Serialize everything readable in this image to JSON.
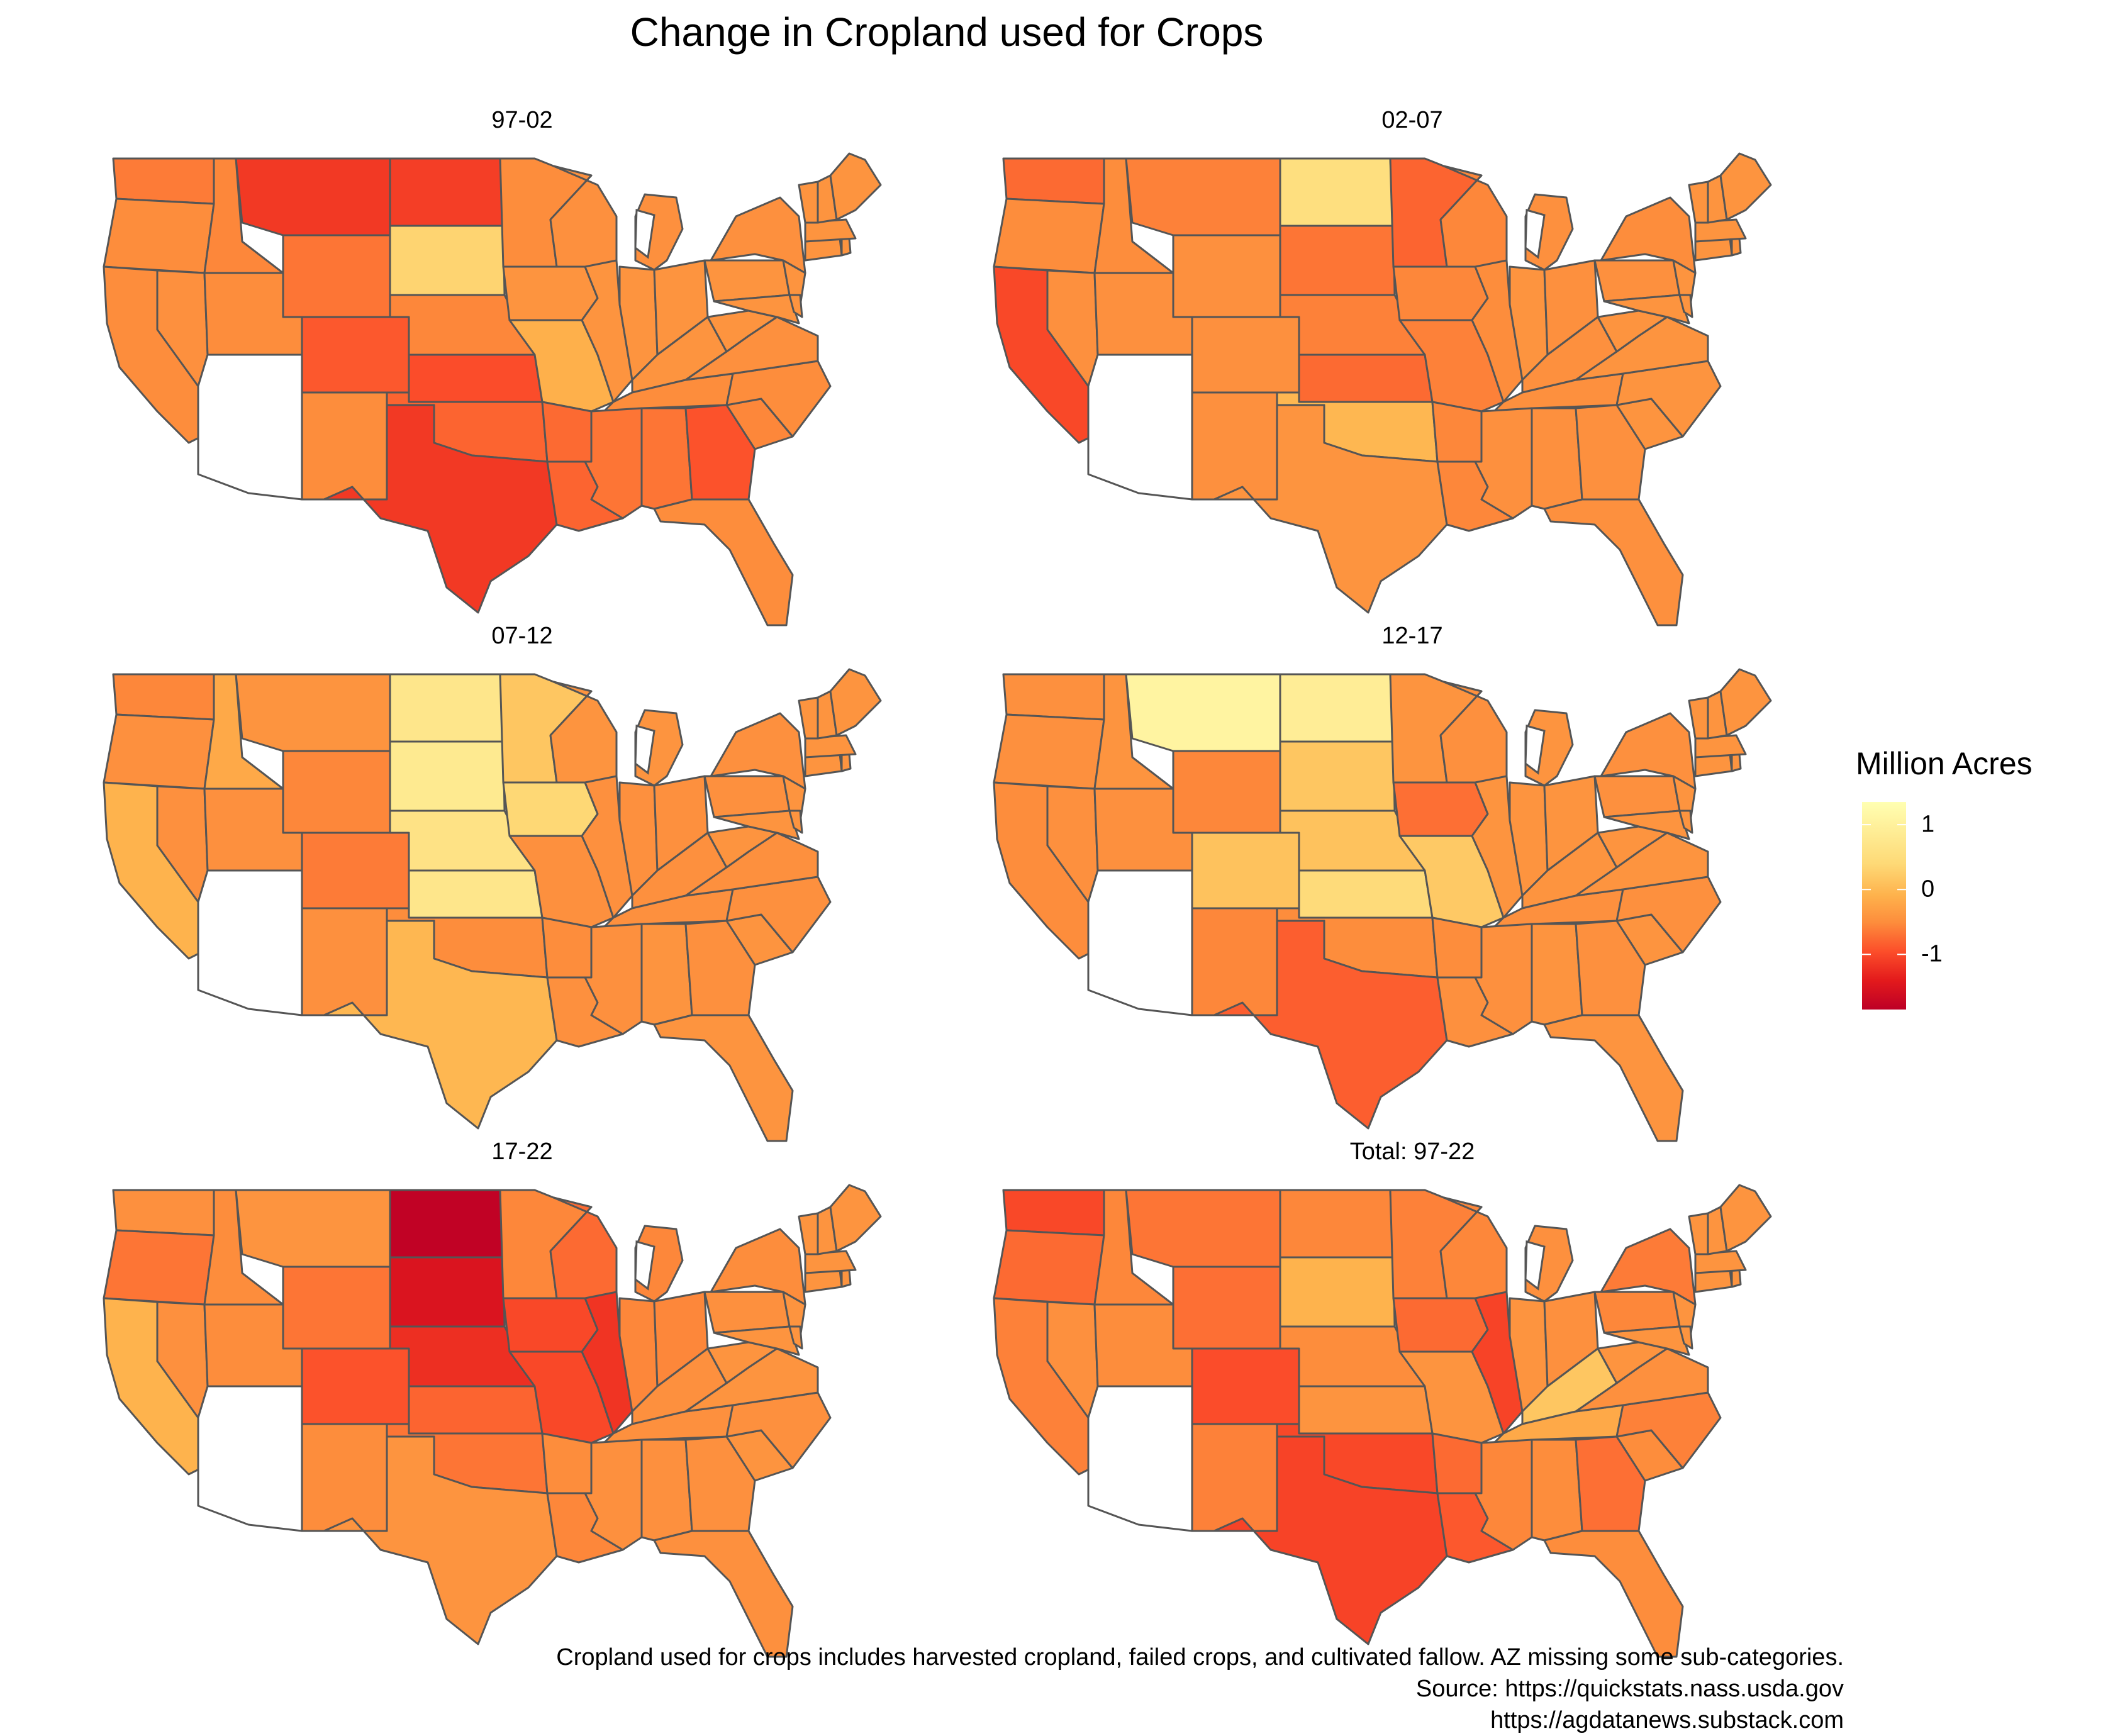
{
  "title": "Change in Cropland used for Crops",
  "colors": {
    "background": "#ffffff",
    "border": "#555555",
    "scale": [
      "#bd0026",
      "#e31a1c",
      "#fc4e2a",
      "#fd8d3c",
      "#feb24c",
      "#fed976",
      "#ffffb2"
    ]
  },
  "legend": {
    "title": "Million Acres",
    "min": -1.85,
    "max": 1.35,
    "ticks": [
      {
        "value": 1,
        "label": "1"
      },
      {
        "value": 0,
        "label": "0"
      },
      {
        "value": -1,
        "label": "-1"
      }
    ]
  },
  "panels": [
    {
      "title": "97-02",
      "values": {
        "WA": -0.4,
        "OR": -0.25,
        "CA": -0.25,
        "NV": -0.2,
        "ID": -0.3,
        "MT": -1.0,
        "WY": -0.45,
        "UT": -0.25,
        "CO": -0.7,
        "AZ": null,
        "NM": -0.25,
        "ND": -0.95,
        "SD": 0.75,
        "NE": -0.3,
        "KS": -0.8,
        "OK": -0.6,
        "TX": -1.0,
        "MN": -0.25,
        "IA": -0.15,
        "MO": 0.25,
        "AR": -0.55,
        "LA": -0.6,
        "WI": -0.2,
        "IL": -0.15,
        "MI": -0.2,
        "IN": -0.15,
        "OH": -0.15,
        "KY": -0.15,
        "TN": -0.25,
        "MS": -0.45,
        "AL": -0.45,
        "GA": -0.75,
        "FL": -0.25,
        "SC": -0.3,
        "NC": -0.25,
        "VA": -0.2,
        "WV": -0.15,
        "PA": -0.15,
        "NY": -0.2,
        "NJ": -0.15,
        "MD": -0.15,
        "DE": -0.15,
        "CT": -0.15,
        "RI": -0.15,
        "MA": -0.15,
        "VT": -0.15,
        "NH": -0.15,
        "ME": -0.15
      }
    },
    {
      "title": "02-07",
      "values": {
        "WA": -0.55,
        "OR": -0.25,
        "CA": -0.85,
        "NV": -0.2,
        "ID": -0.25,
        "MT": -0.35,
        "WY": -0.2,
        "UT": -0.2,
        "CO": -0.2,
        "AZ": null,
        "NM": -0.2,
        "ND": 0.9,
        "SD": -0.45,
        "NE": -0.35,
        "KS": -0.55,
        "OK": 0.35,
        "TX": -0.15,
        "MN": -0.6,
        "IA": -0.3,
        "MO": -0.35,
        "AR": -0.3,
        "LA": -0.3,
        "WI": -0.3,
        "IL": -0.25,
        "MI": -0.2,
        "IN": -0.15,
        "OH": -0.2,
        "KY": -0.2,
        "TN": -0.2,
        "MS": -0.2,
        "AL": -0.2,
        "GA": -0.2,
        "FL": -0.2,
        "SC": -0.15,
        "NC": -0.15,
        "VA": -0.15,
        "WV": -0.15,
        "PA": -0.2,
        "NY": -0.25,
        "NJ": -0.15,
        "MD": -0.15,
        "DE": -0.15,
        "CT": -0.15,
        "RI": -0.15,
        "MA": -0.15,
        "VT": -0.15,
        "NH": -0.15,
        "ME": -0.15
      }
    },
    {
      "title": "07-12",
      "values": {
        "WA": -0.3,
        "OR": -0.2,
        "CA": 0.3,
        "NV": -0.2,
        "ID": 0.15,
        "MT": -0.15,
        "WY": -0.3,
        "UT": -0.2,
        "CO": -0.4,
        "AZ": null,
        "NM": -0.2,
        "ND": 1.0,
        "SD": 1.05,
        "NE": 0.95,
        "KS": 1.0,
        "OK": -0.25,
        "TX": 0.35,
        "MN": 0.55,
        "IA": 0.8,
        "MO": -0.2,
        "AR": -0.25,
        "LA": -0.2,
        "WI": -0.15,
        "IL": -0.2,
        "MI": -0.15,
        "IN": -0.2,
        "OH": -0.2,
        "KY": -0.2,
        "TN": -0.2,
        "MS": -0.2,
        "AL": -0.15,
        "GA": -0.2,
        "FL": -0.15,
        "SC": -0.15,
        "NC": -0.2,
        "VA": -0.2,
        "WV": -0.15,
        "PA": -0.2,
        "NY": -0.2,
        "NJ": -0.15,
        "MD": -0.15,
        "DE": -0.15,
        "CT": -0.15,
        "RI": -0.15,
        "MA": -0.15,
        "VT": -0.15,
        "NH": -0.15,
        "ME": -0.15
      }
    },
    {
      "title": "12-17",
      "values": {
        "WA": -0.2,
        "OR": -0.2,
        "CA": -0.25,
        "NV": -0.2,
        "ID": -0.15,
        "MT": 1.2,
        "WY": -0.3,
        "UT": -0.2,
        "CO": 0.5,
        "AZ": null,
        "NM": -0.3,
        "ND": 1.1,
        "SD": 0.55,
        "NE": 0.5,
        "KS": 0.85,
        "OK": -0.25,
        "TX": -0.65,
        "MN": -0.15,
        "IA": -0.5,
        "MO": 0.6,
        "AR": -0.25,
        "LA": -0.2,
        "WI": -0.2,
        "IL": -0.15,
        "MI": -0.15,
        "IN": -0.15,
        "OH": -0.15,
        "KY": -0.15,
        "TN": -0.2,
        "MS": -0.2,
        "AL": -0.15,
        "GA": -0.2,
        "FL": -0.15,
        "SC": -0.15,
        "NC": -0.2,
        "VA": -0.15,
        "WV": -0.15,
        "PA": -0.2,
        "NY": -0.2,
        "NJ": -0.15,
        "MD": -0.15,
        "DE": -0.15,
        "CT": -0.15,
        "RI": -0.15,
        "MA": -0.15,
        "VT": -0.15,
        "NH": -0.15,
        "ME": -0.15
      }
    },
    {
      "title": "17-22",
      "values": {
        "WA": -0.2,
        "OR": -0.45,
        "CA": 0.3,
        "NV": -0.2,
        "ID": -0.25,
        "MT": -0.15,
        "WY": -0.45,
        "UT": -0.25,
        "CO": -0.75,
        "AZ": null,
        "NM": -0.25,
        "ND": -1.8,
        "SD": -1.45,
        "NE": -1.1,
        "KS": -0.6,
        "OK": -0.45,
        "TX": -0.15,
        "MN": -0.3,
        "IA": -0.85,
        "MO": -0.85,
        "AR": -0.25,
        "LA": -0.3,
        "WI": -0.55,
        "IL": -1.05,
        "MI": -0.3,
        "IN": -0.3,
        "OH": -0.3,
        "KY": -0.2,
        "TN": -0.2,
        "MS": -0.2,
        "AL": -0.2,
        "GA": -0.2,
        "FL": -0.2,
        "SC": -0.15,
        "NC": -0.2,
        "VA": -0.15,
        "WV": -0.15,
        "PA": -0.2,
        "NY": -0.25,
        "NJ": -0.15,
        "MD": -0.15,
        "DE": -0.15,
        "CT": -0.15,
        "RI": -0.15,
        "MA": -0.15,
        "VT": -0.15,
        "NH": -0.15,
        "ME": -0.15
      }
    },
    {
      "title": "Total: 97-22",
      "values": {
        "WA": -0.85,
        "OR": -0.55,
        "CA": -0.35,
        "NV": -0.2,
        "ID": -0.3,
        "MT": -0.45,
        "WY": -0.5,
        "UT": -0.25,
        "CO": -0.8,
        "AZ": null,
        "NM": -0.35,
        "ND": -0.3,
        "SD": 0.3,
        "NE": -0.25,
        "KS": -0.15,
        "OK": -0.85,
        "TX": -0.9,
        "MN": -0.35,
        "IA": -0.55,
        "MO": -0.15,
        "AR": -0.55,
        "LA": -0.7,
        "WI": -0.3,
        "IL": -0.9,
        "MI": -0.2,
        "IN": -0.15,
        "OH": -0.2,
        "KY": 0.55,
        "TN": 0.15,
        "MS": -0.3,
        "AL": -0.25,
        "GA": -0.5,
        "FL": -0.25,
        "SC": -0.25,
        "NC": -0.35,
        "VA": -0.2,
        "WV": -0.15,
        "PA": -0.3,
        "NY": -0.4,
        "NJ": -0.15,
        "MD": -0.15,
        "DE": -0.15,
        "CT": -0.15,
        "RI": -0.15,
        "MA": -0.15,
        "VT": -0.15,
        "NH": -0.15,
        "ME": -0.15
      }
    }
  ],
  "caption": {
    "line1": "Cropland used for crops includes harvested cropland, failed crops, and cultivated fallow. AZ missing some sub-categories.",
    "line2": "Source: https://quickstats.nass.usda.gov",
    "line3": "https://agdatanews.substack.com"
  }
}
